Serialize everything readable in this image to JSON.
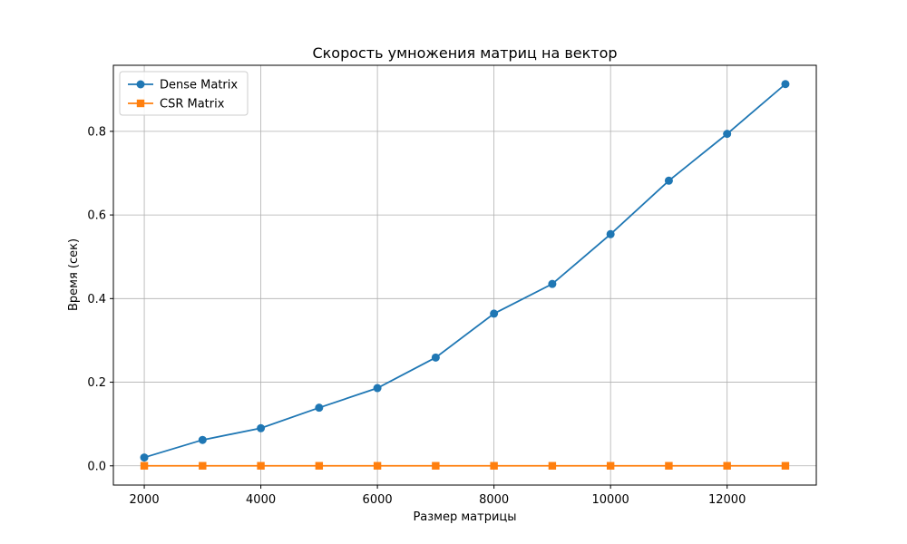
{
  "chart_data": {
    "type": "line",
    "title": "Скорость умножения матриц на вектор",
    "xlabel": "Размер матрицы",
    "ylabel": "Время (сек)",
    "xlim": [
      1470,
      13530
    ],
    "ylim": [
      -0.046,
      0.958
    ],
    "xticks": [
      2000,
      4000,
      6000,
      8000,
      10000,
      12000
    ],
    "xtick_labels": [
      "2000",
      "4000",
      "6000",
      "8000",
      "10000",
      "12000"
    ],
    "yticks": [
      0.0,
      0.2,
      0.4,
      0.6,
      0.8
    ],
    "ytick_labels": [
      "0.0",
      "0.2",
      "0.4",
      "0.6",
      "0.8"
    ],
    "grid": true,
    "legend_position": "top-left",
    "x": [
      2000,
      3000,
      4000,
      5000,
      6000,
      7000,
      8000,
      9000,
      10000,
      11000,
      12000,
      13000
    ],
    "series": [
      {
        "name": "Dense Matrix",
        "color": "#1f77b4",
        "marker": "circle",
        "values": [
          0.02,
          0.062,
          0.09,
          0.139,
          0.186,
          0.259,
          0.364,
          0.435,
          0.554,
          0.682,
          0.794,
          0.913
        ]
      },
      {
        "name": "CSR Matrix",
        "color": "#ff7f0e",
        "marker": "square",
        "values": [
          0.0001,
          0.0001,
          0.0001,
          0.0001,
          0.0001,
          0.0001,
          0.0001,
          0.0001,
          0.0001,
          0.0001,
          0.0001,
          0.0001
        ]
      }
    ]
  }
}
